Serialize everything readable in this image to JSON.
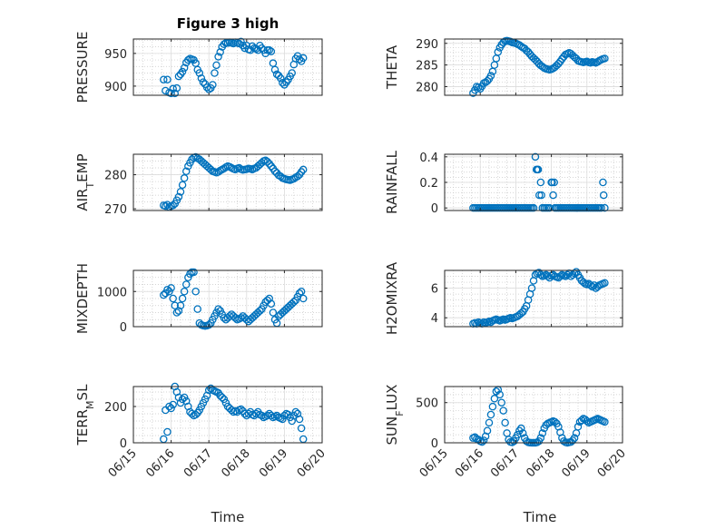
{
  "figure": {
    "title": "Figure 3 high",
    "xlabel": "Time",
    "x_tick_labels": [
      "06/15",
      "06/16",
      "06/17",
      "06/18",
      "06/19",
      "06/20"
    ]
  },
  "chart_data": [
    {
      "type": "scatter",
      "ylabel": "PRESSURE",
      "yticks": [
        900,
        950
      ],
      "ylim": [
        886,
        972
      ],
      "xlim": [
        "06/15",
        "06/20"
      ],
      "grid": "on",
      "x": [
        15.8,
        15.85,
        15.9,
        15.95,
        16.0,
        16.05,
        16.1,
        16.15,
        16.2,
        16.25,
        16.3,
        16.35,
        16.4,
        16.45,
        16.5,
        16.55,
        16.6,
        16.65,
        16.7,
        16.75,
        16.8,
        16.85,
        16.9,
        16.95,
        17.0,
        17.05,
        17.1,
        17.15,
        17.2,
        17.25,
        17.3,
        17.35,
        17.4,
        17.45,
        17.5,
        17.55,
        17.6,
        17.65,
        17.7,
        17.75,
        17.8,
        17.85,
        17.9,
        17.95,
        18.0,
        18.05,
        18.1,
        18.15,
        18.2,
        18.25,
        18.3,
        18.35,
        18.4,
        18.45,
        18.5,
        18.55,
        18.6,
        18.65,
        18.7,
        18.75,
        18.8,
        18.85,
        18.9,
        18.95,
        19.0,
        19.05,
        19.1,
        19.15,
        19.2,
        19.25,
        19.3,
        19.35,
        19.4,
        19.45,
        19.5
      ],
      "y": [
        910,
        893,
        910,
        890,
        889,
        896,
        889,
        897,
        915,
        918,
        922,
        928,
        936,
        940,
        942,
        941,
        940,
        935,
        925,
        920,
        912,
        906,
        903,
        898,
        895,
        897,
        902,
        920,
        932,
        945,
        952,
        960,
        964,
        966,
        966,
        967,
        966,
        965,
        967,
        966,
        965,
        968,
        962,
        958,
        962,
        956,
        955,
        961,
        958,
        957,
        955,
        962,
        958,
        955,
        950,
        955,
        955,
        953,
        935,
        925,
        918,
        916,
        912,
        905,
        902,
        906,
        910,
        915,
        920,
        933,
        942,
        946,
        941,
        938,
        943
      ]
    },
    {
      "type": "scatter",
      "ylabel": "THETA",
      "yticks": [
        280,
        285,
        290
      ],
      "ylim": [
        278,
        291
      ],
      "xlim": [
        "06/15",
        "06/20"
      ],
      "grid": "on",
      "x": [
        15.8,
        15.85,
        15.9,
        15.95,
        16.0,
        16.05,
        16.1,
        16.15,
        16.2,
        16.25,
        16.3,
        16.35,
        16.4,
        16.45,
        16.5,
        16.55,
        16.6,
        16.65,
        16.7,
        16.75,
        16.8,
        16.85,
        16.9,
        16.95,
        17.0,
        17.05,
        17.1,
        17.15,
        17.2,
        17.25,
        17.3,
        17.35,
        17.4,
        17.45,
        17.5,
        17.55,
        17.6,
        17.65,
        17.7,
        17.75,
        17.8,
        17.85,
        17.9,
        17.95,
        18.0,
        18.05,
        18.1,
        18.15,
        18.2,
        18.25,
        18.3,
        18.35,
        18.4,
        18.45,
        18.5,
        18.55,
        18.6,
        18.65,
        18.7,
        18.75,
        18.8,
        18.85,
        18.9,
        18.95,
        19.0,
        19.05,
        19.1,
        19.15,
        19.2,
        19.25,
        19.3,
        19.35,
        19.4,
        19.45,
        19.5
      ],
      "y": [
        278.5,
        279.2,
        280.0,
        279.8,
        279.5,
        280.1,
        280.8,
        281.0,
        281.3,
        281.8,
        282.5,
        283.5,
        285.0,
        286.5,
        288.0,
        289.0,
        289.7,
        290.2,
        290.5,
        290.6,
        290.5,
        290.4,
        290.2,
        290.1,
        290.0,
        289.8,
        289.6,
        289.3,
        289.0,
        288.8,
        288.3,
        288.0,
        287.5,
        287.0,
        286.6,
        286.2,
        285.8,
        285.3,
        284.9,
        284.6,
        284.3,
        284.1,
        284.0,
        283.9,
        284.0,
        284.2,
        284.5,
        284.9,
        285.3,
        285.8,
        286.4,
        286.9,
        287.4,
        287.6,
        287.8,
        287.6,
        287.2,
        286.8,
        286.5,
        286.0,
        285.8,
        285.7,
        285.6,
        285.7,
        285.8,
        285.6,
        285.5,
        285.7,
        285.6,
        285.5,
        285.7,
        286.0,
        286.2,
        286.4,
        286.5
      ]
    },
    {
      "type": "scatter",
      "ylabel": "AIR_TEMP",
      "yticks": [
        270,
        280
      ],
      "ylim": [
        269.5,
        286
      ],
      "xlim": [
        "06/15",
        "06/20"
      ],
      "grid": "on",
      "x": [
        15.8,
        15.85,
        15.9,
        15.95,
        16.0,
        16.05,
        16.1,
        16.15,
        16.2,
        16.25,
        16.3,
        16.35,
        16.4,
        16.45,
        16.5,
        16.55,
        16.6,
        16.65,
        16.7,
        16.75,
        16.8,
        16.85,
        16.9,
        16.95,
        17.0,
        17.05,
        17.1,
        17.15,
        17.2,
        17.25,
        17.3,
        17.35,
        17.4,
        17.45,
        17.5,
        17.55,
        17.6,
        17.65,
        17.7,
        17.75,
        17.8,
        17.85,
        17.9,
        17.95,
        18.0,
        18.05,
        18.1,
        18.15,
        18.2,
        18.25,
        18.3,
        18.35,
        18.4,
        18.45,
        18.5,
        18.55,
        18.6,
        18.65,
        18.7,
        18.75,
        18.8,
        18.85,
        18.9,
        18.95,
        19.0,
        19.05,
        19.1,
        19.15,
        19.2,
        19.25,
        19.3,
        19.35,
        19.4,
        19.45,
        19.5
      ],
      "y": [
        271.0,
        270.8,
        271.2,
        270.5,
        270.8,
        271.0,
        271.5,
        272.5,
        273.5,
        275.0,
        277.0,
        279.0,
        281.0,
        282.5,
        283.5,
        284.5,
        285.0,
        285.2,
        284.8,
        284.5,
        284.0,
        283.5,
        283.0,
        282.5,
        282.0,
        281.5,
        281.0,
        280.8,
        280.6,
        280.8,
        281.2,
        281.5,
        281.8,
        282.2,
        282.5,
        282.3,
        282.0,
        281.7,
        281.5,
        281.8,
        282.0,
        281.6,
        281.4,
        281.5,
        281.6,
        281.8,
        281.7,
        281.5,
        281.8,
        282.0,
        282.5,
        283.0,
        283.5,
        284.0,
        284.2,
        283.8,
        283.2,
        282.5,
        281.8,
        281.0,
        280.5,
        279.8,
        279.5,
        279.0,
        278.8,
        278.6,
        278.5,
        278.4,
        278.6,
        278.8,
        279.2,
        279.5,
        280.0,
        280.8,
        281.5
      ]
    },
    {
      "type": "scatter",
      "ylabel": "RAINFALL",
      "yticks": [
        0,
        0.2,
        0.4
      ],
      "ylim": [
        -0.02,
        0.42
      ],
      "xlim": [
        "06/15",
        "06/20"
      ],
      "grid": "on",
      "x": [
        15.8,
        15.85,
        15.9,
        15.95,
        16.0,
        16.05,
        16.1,
        16.15,
        16.2,
        16.25,
        16.3,
        16.35,
        16.4,
        16.45,
        16.5,
        16.55,
        16.6,
        16.65,
        16.7,
        16.75,
        16.8,
        16.85,
        16.9,
        16.95,
        17.0,
        17.05,
        17.1,
        17.15,
        17.2,
        17.25,
        17.3,
        17.35,
        17.4,
        17.45,
        17.5,
        17.55,
        17.58,
        17.61,
        17.63,
        17.66,
        17.7,
        17.72,
        17.75,
        17.8,
        17.85,
        17.9,
        17.95,
        18.0,
        18.02,
        18.05,
        18.08,
        18.1,
        18.15,
        18.2,
        18.25,
        18.3,
        18.35,
        18.4,
        18.45,
        18.5,
        18.55,
        18.6,
        18.65,
        18.7,
        18.75,
        18.8,
        18.85,
        18.9,
        18.95,
        19.0,
        19.05,
        19.1,
        19.15,
        19.2,
        19.25,
        19.3,
        19.35,
        19.4,
        19.45,
        19.47,
        19.5
      ],
      "y": [
        0,
        0,
        0,
        0,
        0,
        0,
        0,
        0,
        0,
        0,
        0,
        0,
        0,
        0,
        0,
        0,
        0,
        0,
        0,
        0,
        0,
        0,
        0,
        0,
        0,
        0,
        0,
        0,
        0,
        0,
        0,
        0,
        0,
        0,
        0,
        0.4,
        0.3,
        0.3,
        0.3,
        0.1,
        0.2,
        0.1,
        0,
        0,
        0,
        0,
        0,
        0.2,
        0.2,
        0.1,
        0.2,
        0,
        0,
        0,
        0,
        0,
        0,
        0,
        0,
        0,
        0,
        0,
        0,
        0,
        0,
        0,
        0,
        0,
        0,
        0,
        0,
        0,
        0,
        0,
        0,
        0,
        0,
        0,
        0.2,
        0.1,
        0
      ]
    },
    {
      "type": "scatter",
      "ylabel": "MIXDEPTH",
      "yticks": [
        0,
        1000
      ],
      "ylim": [
        0,
        1600
      ],
      "xlim": [
        "06/15",
        "06/20"
      ],
      "grid": "on",
      "x": [
        15.8,
        15.85,
        15.9,
        15.95,
        16.0,
        16.05,
        16.1,
        16.15,
        16.2,
        16.25,
        16.3,
        16.35,
        16.4,
        16.45,
        16.5,
        16.55,
        16.6,
        16.65,
        16.7,
        16.75,
        16.8,
        16.85,
        16.9,
        16.95,
        17.0,
        17.05,
        17.1,
        17.15,
        17.2,
        17.25,
        17.3,
        17.35,
        17.4,
        17.45,
        17.5,
        17.55,
        17.6,
        17.65,
        17.7,
        17.75,
        17.8,
        17.85,
        17.9,
        17.95,
        18.0,
        18.05,
        18.1,
        18.15,
        18.2,
        18.25,
        18.3,
        18.35,
        18.4,
        18.45,
        18.5,
        18.55,
        18.6,
        18.65,
        18.7,
        18.75,
        18.8,
        18.85,
        18.9,
        18.95,
        19.0,
        19.05,
        19.1,
        19.15,
        19.2,
        19.25,
        19.3,
        19.35,
        19.4,
        19.45,
        19.5
      ],
      "y": [
        900,
        950,
        1050,
        1000,
        1100,
        800,
        600,
        400,
        450,
        600,
        800,
        1000,
        1200,
        1400,
        1500,
        1550,
        1550,
        1000,
        500,
        100,
        50,
        30,
        20,
        30,
        50,
        100,
        200,
        300,
        400,
        500,
        450,
        350,
        250,
        200,
        250,
        300,
        350,
        300,
        250,
        200,
        220,
        250,
        300,
        250,
        200,
        150,
        200,
        250,
        300,
        350,
        400,
        450,
        500,
        600,
        700,
        750,
        800,
        650,
        400,
        200,
        100,
        300,
        350,
        400,
        450,
        500,
        550,
        600,
        650,
        700,
        750,
        850,
        950,
        1000,
        800
      ]
    },
    {
      "type": "scatter",
      "ylabel": "H2OMIXRA",
      "yticks": [
        4,
        6
      ],
      "ylim": [
        3.4,
        7.2
      ],
      "xlim": [
        "06/15",
        "06/20"
      ],
      "grid": "on",
      "x": [
        15.8,
        15.85,
        15.9,
        15.95,
        16.0,
        16.05,
        16.1,
        16.15,
        16.2,
        16.25,
        16.3,
        16.35,
        16.4,
        16.45,
        16.5,
        16.55,
        16.6,
        16.65,
        16.7,
        16.75,
        16.8,
        16.85,
        16.9,
        16.95,
        17.0,
        17.05,
        17.1,
        17.15,
        17.2,
        17.25,
        17.3,
        17.35,
        17.4,
        17.45,
        17.5,
        17.55,
        17.6,
        17.65,
        17.7,
        17.75,
        17.8,
        17.85,
        17.9,
        17.95,
        18.0,
        18.05,
        18.1,
        18.15,
        18.2,
        18.25,
        18.3,
        18.35,
        18.4,
        18.45,
        18.5,
        18.55,
        18.6,
        18.65,
        18.7,
        18.75,
        18.8,
        18.85,
        18.9,
        18.95,
        19.0,
        19.05,
        19.1,
        19.15,
        19.2,
        19.25,
        19.3,
        19.35,
        19.4,
        19.45,
        19.5
      ],
      "y": [
        3.6,
        3.65,
        3.6,
        3.7,
        3.65,
        3.6,
        3.7,
        3.65,
        3.7,
        3.75,
        3.7,
        3.8,
        3.85,
        3.9,
        3.85,
        3.8,
        3.85,
        3.9,
        3.85,
        3.9,
        3.95,
        4.0,
        3.95,
        4.0,
        4.05,
        4.1,
        4.2,
        4.3,
        4.4,
        4.6,
        4.8,
        5.2,
        5.6,
        6.0,
        6.5,
        6.9,
        7.0,
        7.05,
        6.9,
        6.8,
        6.85,
        6.9,
        6.8,
        6.7,
        6.85,
        6.9,
        6.8,
        6.75,
        6.7,
        6.8,
        6.9,
        6.85,
        6.8,
        6.9,
        7.0,
        6.8,
        6.9,
        7.0,
        7.1,
        6.9,
        6.7,
        6.5,
        6.4,
        6.3,
        6.25,
        6.3,
        6.2,
        6.1,
        6.2,
        6.0,
        6.1,
        6.2,
        6.25,
        6.3,
        6.35
      ]
    },
    {
      "type": "scatter",
      "ylabel": "TERR_MSL",
      "yticks": [
        0,
        200
      ],
      "ylim": [
        0,
        310
      ],
      "xlim": [
        "06/15",
        "06/20"
      ],
      "grid": "on",
      "x": [
        15.8,
        15.85,
        15.9,
        15.95,
        16.0,
        16.05,
        16.1,
        16.15,
        16.2,
        16.25,
        16.3,
        16.35,
        16.4,
        16.45,
        16.5,
        16.55,
        16.6,
        16.65,
        16.7,
        16.75,
        16.8,
        16.85,
        16.9,
        16.95,
        17.0,
        17.05,
        17.1,
        17.15,
        17.2,
        17.25,
        17.3,
        17.35,
        17.4,
        17.45,
        17.5,
        17.55,
        17.6,
        17.65,
        17.7,
        17.75,
        17.8,
        17.85,
        17.9,
        17.95,
        18.0,
        18.05,
        18.1,
        18.15,
        18.2,
        18.25,
        18.3,
        18.35,
        18.4,
        18.45,
        18.5,
        18.55,
        18.6,
        18.65,
        18.7,
        18.75,
        18.8,
        18.85,
        18.9,
        18.95,
        19.0,
        19.05,
        19.1,
        19.15,
        19.2,
        19.25,
        19.3,
        19.35,
        19.4,
        19.45,
        19.5
      ],
      "y": [
        20,
        180,
        60,
        200,
        190,
        210,
        310,
        280,
        250,
        220,
        240,
        250,
        230,
        200,
        170,
        160,
        150,
        155,
        165,
        180,
        200,
        220,
        240,
        260,
        290,
        300,
        290,
        285,
        280,
        275,
        260,
        250,
        240,
        220,
        200,
        190,
        180,
        170,
        175,
        170,
        180,
        185,
        175,
        160,
        150,
        160,
        170,
        155,
        150,
        160,
        170,
        155,
        150,
        140,
        145,
        150,
        160,
        150,
        140,
        145,
        150,
        140,
        135,
        130,
        150,
        160,
        155,
        140,
        120,
        150,
        170,
        160,
        130,
        80,
        20
      ]
    },
    {
      "type": "scatter",
      "ylabel": "SUN_FLUX",
      "yticks": [
        0,
        500
      ],
      "ylim": [
        0,
        700
      ],
      "xlim": [
        "06/15",
        "06/20"
      ],
      "grid": "on",
      "x": [
        15.8,
        15.85,
        15.9,
        15.95,
        16.0,
        16.05,
        16.1,
        16.15,
        16.2,
        16.25,
        16.3,
        16.35,
        16.4,
        16.45,
        16.5,
        16.55,
        16.6,
        16.65,
        16.7,
        16.75,
        16.8,
        16.85,
        16.9,
        16.95,
        17.0,
        17.05,
        17.1,
        17.15,
        17.2,
        17.25,
        17.3,
        17.35,
        17.4,
        17.45,
        17.5,
        17.55,
        17.6,
        17.65,
        17.7,
        17.75,
        17.8,
        17.85,
        17.9,
        17.95,
        18.0,
        18.05,
        18.1,
        18.15,
        18.2,
        18.25,
        18.3,
        18.35,
        18.4,
        18.45,
        18.5,
        18.55,
        18.6,
        18.65,
        18.7,
        18.75,
        18.8,
        18.85,
        18.9,
        18.95,
        19.0,
        19.05,
        19.1,
        19.15,
        19.2,
        19.25,
        19.3,
        19.35,
        19.4,
        19.45,
        19.5
      ],
      "y": [
        60,
        70,
        50,
        40,
        20,
        10,
        30,
        80,
        150,
        250,
        350,
        450,
        550,
        640,
        660,
        600,
        500,
        400,
        250,
        120,
        40,
        10,
        5,
        20,
        60,
        100,
        150,
        180,
        120,
        60,
        20,
        5,
        2,
        0,
        0,
        0,
        5,
        20,
        60,
        120,
        180,
        220,
        240,
        250,
        260,
        270,
        260,
        240,
        200,
        130,
        60,
        20,
        5,
        0,
        5,
        10,
        30,
        60,
        120,
        200,
        260,
        280,
        300,
        290,
        270,
        250,
        260,
        270,
        280,
        290,
        300,
        290,
        280,
        270,
        260
      ]
    }
  ]
}
